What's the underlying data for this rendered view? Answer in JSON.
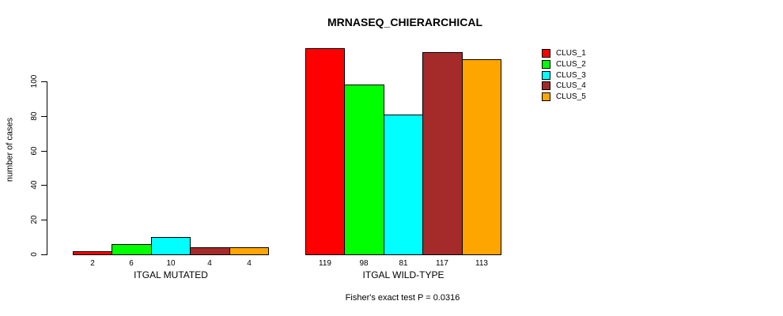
{
  "chart_data": {
    "type": "bar",
    "title": "MRNASEQ_CHIERARCHICAL",
    "ylabel": "number of cases",
    "xlabel": "",
    "footnote": "Fisher's exact test P = 0.0316",
    "ylim": [
      0,
      120
    ],
    "yticks": [
      0,
      20,
      40,
      60,
      80,
      100
    ],
    "grid": false,
    "legend_position": "right",
    "bar_border_color": "#000000",
    "series": [
      {
        "name": "CLUS_1",
        "color": "#ff0000"
      },
      {
        "name": "CLUS_2",
        "color": "#00ff00"
      },
      {
        "name": "CLUS_3",
        "color": "#00ffff"
      },
      {
        "name": "CLUS_4",
        "color": "#a52a2a"
      },
      {
        "name": "CLUS_5",
        "color": "#ffa500"
      }
    ],
    "groups": [
      {
        "label": "ITGAL MUTATED",
        "values": [
          2,
          6,
          10,
          4,
          4
        ]
      },
      {
        "label": "ITGAL WILD-TYPE",
        "values": [
          119,
          98,
          81,
          117,
          113
        ]
      }
    ]
  }
}
